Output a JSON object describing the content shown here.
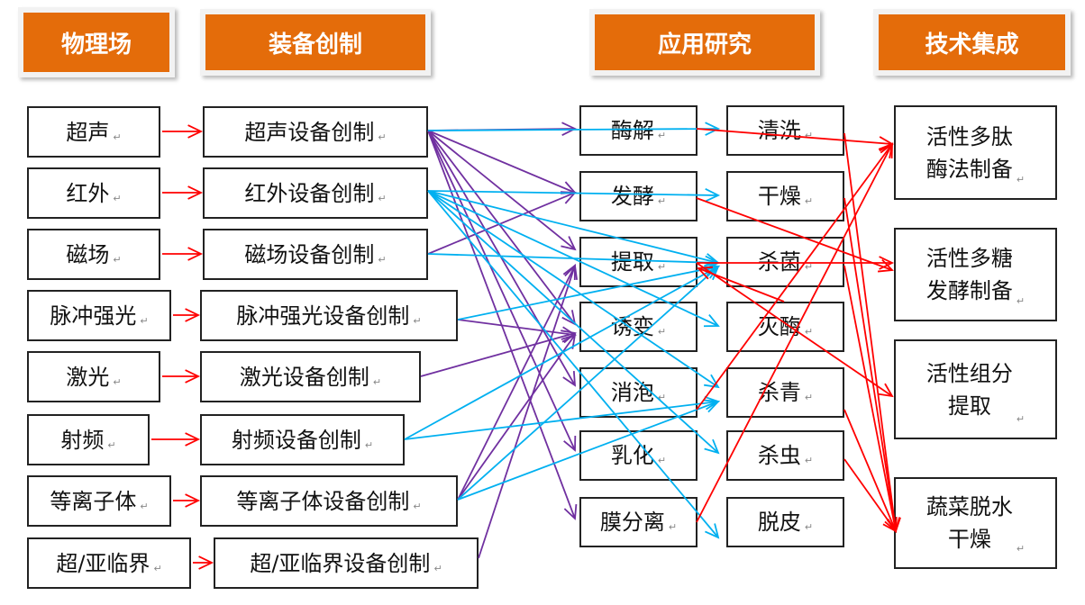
{
  "headers": [
    "物理场",
    "装备创制",
    "应用研究",
    "技术集成"
  ],
  "physical_fields": [
    "超声",
    "红外",
    "磁场",
    "脉冲强光",
    "激光",
    "射频",
    "等离子体",
    "超/亚临界"
  ],
  "equipment": [
    "超声设备创制",
    "红外设备创制",
    "磁场设备创制",
    "脉冲强光设备创制",
    "激光设备创制",
    "射频设备创制",
    "等离子体设备创制",
    "超/亚临界设备创制"
  ],
  "research_a": [
    "酶解",
    "发酵",
    "提取",
    "诱变",
    "消泡",
    "乳化",
    "膜分离"
  ],
  "research_b": [
    "清洗",
    "干燥",
    "杀菌",
    "灭酶",
    "杀青",
    "杀虫",
    "脱皮"
  ],
  "integration": [
    "活性多肽\n酶法制备",
    "活性多糖\n发酵制备",
    "活性组分\n提取",
    "蔬菜脱水\n干燥"
  ],
  "paragraph_mark": "↵",
  "colors": {
    "header": "#E46C0A",
    "field_to_equipment": "#FF0000",
    "equipment_purple": "#7030A0",
    "equipment_blue": "#00B0F0",
    "to_integration": "#FF0000"
  }
}
